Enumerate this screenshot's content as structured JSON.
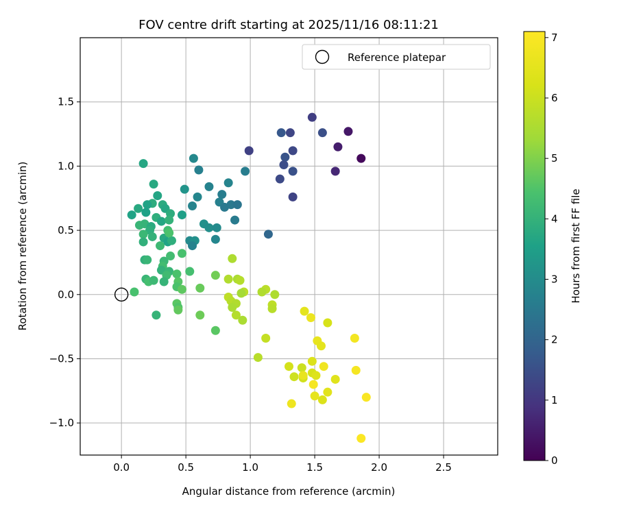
{
  "chart_data": {
    "type": "scatter",
    "title": "FOV centre drift starting at 2025/11/16 08:11:21",
    "xlabel": "Angular distance from reference (arcmin)",
    "ylabel": "Rotation from reference (arcmin)",
    "xlim": [
      -0.32,
      2.92
    ],
    "ylim": [
      -1.25,
      2.0
    ],
    "xticks": [
      0.0,
      0.5,
      1.0,
      1.5,
      2.0,
      2.5
    ],
    "xtick_labels": [
      "0.0",
      "0.5",
      "1.0",
      "1.5",
      "2.0",
      "2.5"
    ],
    "yticks": [
      -1.0,
      -0.5,
      0.0,
      0.5,
      1.0,
      1.5
    ],
    "ytick_labels": [
      "−1.0",
      "−0.5",
      "0.0",
      "0.5",
      "1.0",
      "1.5"
    ],
    "grid": true,
    "legend": {
      "placement": "top-right",
      "label": "Reference platepar"
    },
    "reference_point": {
      "x": 0.0,
      "y": 0.0
    },
    "colorbar": {
      "label": "Hours from first FF file",
      "colormap": "viridis",
      "min": 0,
      "max": 7.1,
      "ticks": [
        0,
        1,
        2,
        3,
        4,
        5,
        6,
        7
      ],
      "tick_labels": [
        "0",
        "1",
        "2",
        "3",
        "4",
        "5",
        "6",
        "7"
      ]
    },
    "points": [
      {
        "x": 1.48,
        "y": 1.38,
        "h": 1.15
      },
      {
        "x": 1.76,
        "y": 1.27,
        "h": 0.4
      },
      {
        "x": 1.86,
        "y": 1.06,
        "h": 0.15
      },
      {
        "x": 1.68,
        "y": 1.15,
        "h": 0.5
      },
      {
        "x": 1.66,
        "y": 0.96,
        "h": 0.7
      },
      {
        "x": 1.56,
        "y": 1.26,
        "h": 1.5
      },
      {
        "x": 1.24,
        "y": 1.26,
        "h": 1.7
      },
      {
        "x": 1.31,
        "y": 1.26,
        "h": 1.3
      },
      {
        "x": 0.99,
        "y": 1.12,
        "h": 1.2
      },
      {
        "x": 1.33,
        "y": 1.12,
        "h": 1.35
      },
      {
        "x": 1.27,
        "y": 1.07,
        "h": 1.6
      },
      {
        "x": 1.26,
        "y": 1.01,
        "h": 1.45
      },
      {
        "x": 1.33,
        "y": 0.96,
        "h": 1.55
      },
      {
        "x": 1.23,
        "y": 0.9,
        "h": 1.4
      },
      {
        "x": 1.33,
        "y": 0.76,
        "h": 1.25
      },
      {
        "x": 1.14,
        "y": 0.47,
        "h": 2.05
      },
      {
        "x": 0.96,
        "y": 0.96,
        "h": 2.6
      },
      {
        "x": 0.56,
        "y": 1.06,
        "h": 2.9
      },
      {
        "x": 0.6,
        "y": 0.97,
        "h": 2.7
      },
      {
        "x": 0.83,
        "y": 0.87,
        "h": 2.8
      },
      {
        "x": 0.68,
        "y": 0.84,
        "h": 2.75
      },
      {
        "x": 0.49,
        "y": 0.82,
        "h": 3.2
      },
      {
        "x": 0.78,
        "y": 0.78,
        "h": 2.6
      },
      {
        "x": 0.59,
        "y": 0.76,
        "h": 2.85
      },
      {
        "x": 0.76,
        "y": 0.72,
        "h": 2.7
      },
      {
        "x": 0.8,
        "y": 0.68,
        "h": 2.5
      },
      {
        "x": 0.85,
        "y": 0.7,
        "h": 2.5
      },
      {
        "x": 0.9,
        "y": 0.7,
        "h": 2.4
      },
      {
        "x": 0.55,
        "y": 0.69,
        "h": 2.8
      },
      {
        "x": 0.88,
        "y": 0.58,
        "h": 2.55
      },
      {
        "x": 0.64,
        "y": 0.55,
        "h": 3.1
      },
      {
        "x": 0.68,
        "y": 0.52,
        "h": 3.05
      },
      {
        "x": 0.74,
        "y": 0.52,
        "h": 2.95
      },
      {
        "x": 0.53,
        "y": 0.42,
        "h": 2.95
      },
      {
        "x": 0.57,
        "y": 0.42,
        "h": 3.1
      },
      {
        "x": 0.55,
        "y": 0.38,
        "h": 2.75
      },
      {
        "x": 0.73,
        "y": 0.43,
        "h": 2.85
      },
      {
        "x": 0.47,
        "y": 0.62,
        "h": 3.5
      },
      {
        "x": 0.17,
        "y": 1.02,
        "h": 3.7
      },
      {
        "x": 0.25,
        "y": 0.86,
        "h": 3.75
      },
      {
        "x": 0.28,
        "y": 0.77,
        "h": 3.65
      },
      {
        "x": 0.32,
        "y": 0.7,
        "h": 3.8
      },
      {
        "x": 0.34,
        "y": 0.67,
        "h": 3.7
      },
      {
        "x": 0.24,
        "y": 0.71,
        "h": 3.85
      },
      {
        "x": 0.2,
        "y": 0.7,
        "h": 3.6
      },
      {
        "x": 0.13,
        "y": 0.67,
        "h": 3.75
      },
      {
        "x": 0.08,
        "y": 0.62,
        "h": 3.6
      },
      {
        "x": 0.19,
        "y": 0.64,
        "h": 3.55
      },
      {
        "x": 0.27,
        "y": 0.6,
        "h": 3.9
      },
      {
        "x": 0.31,
        "y": 0.57,
        "h": 3.7
      },
      {
        "x": 0.38,
        "y": 0.63,
        "h": 3.85
      },
      {
        "x": 0.37,
        "y": 0.58,
        "h": 4.0
      },
      {
        "x": 0.14,
        "y": 0.54,
        "h": 4.1
      },
      {
        "x": 0.18,
        "y": 0.55,
        "h": 4.05
      },
      {
        "x": 0.23,
        "y": 0.53,
        "h": 3.8
      },
      {
        "x": 0.22,
        "y": 0.5,
        "h": 3.9
      },
      {
        "x": 0.17,
        "y": 0.47,
        "h": 4.15
      },
      {
        "x": 0.24,
        "y": 0.45,
        "h": 4.0
      },
      {
        "x": 0.33,
        "y": 0.44,
        "h": 3.75
      },
      {
        "x": 0.36,
        "y": 0.41,
        "h": 3.6
      },
      {
        "x": 0.39,
        "y": 0.42,
        "h": 3.9
      },
      {
        "x": 0.17,
        "y": 0.41,
        "h": 3.95
      },
      {
        "x": 0.36,
        "y": 0.5,
        "h": 4.3
      },
      {
        "x": 0.37,
        "y": 0.48,
        "h": 4.45
      },
      {
        "x": 0.3,
        "y": 0.38,
        "h": 4.2
      },
      {
        "x": 0.38,
        "y": 0.3,
        "h": 4.3
      },
      {
        "x": 0.47,
        "y": 0.32,
        "h": 4.4
      },
      {
        "x": 0.18,
        "y": 0.27,
        "h": 3.95
      },
      {
        "x": 0.2,
        "y": 0.27,
        "h": 4.1
      },
      {
        "x": 0.33,
        "y": 0.26,
        "h": 4.15
      },
      {
        "x": 0.32,
        "y": 0.22,
        "h": 4.3
      },
      {
        "x": 0.31,
        "y": 0.19,
        "h": 4.0
      },
      {
        "x": 0.37,
        "y": 0.18,
        "h": 4.1
      },
      {
        "x": 0.35,
        "y": 0.15,
        "h": 4.25
      },
      {
        "x": 0.53,
        "y": 0.18,
        "h": 4.35
      },
      {
        "x": 0.43,
        "y": 0.16,
        "h": 4.45
      },
      {
        "x": 0.19,
        "y": 0.12,
        "h": 4.1
      },
      {
        "x": 0.21,
        "y": 0.1,
        "h": 4.35
      },
      {
        "x": 0.25,
        "y": 0.11,
        "h": 4.2
      },
      {
        "x": 0.33,
        "y": 0.1,
        "h": 4.05
      },
      {
        "x": 0.44,
        "y": 0.1,
        "h": 4.55
      },
      {
        "x": 0.43,
        "y": 0.06,
        "h": 4.45
      },
      {
        "x": 0.47,
        "y": 0.04,
        "h": 4.65
      },
      {
        "x": 0.61,
        "y": 0.05,
        "h": 4.75
      },
      {
        "x": 0.1,
        "y": 0.02,
        "h": 4.4
      },
      {
        "x": 0.43,
        "y": -0.07,
        "h": 4.6
      },
      {
        "x": 0.44,
        "y": -0.1,
        "h": 4.5
      },
      {
        "x": 0.44,
        "y": -0.12,
        "h": 4.7
      },
      {
        "x": 0.27,
        "y": -0.16,
        "h": 4.05
      },
      {
        "x": 0.61,
        "y": -0.16,
        "h": 4.8
      },
      {
        "x": 0.73,
        "y": 0.15,
        "h": 4.85
      },
      {
        "x": 0.73,
        "y": -0.28,
        "h": 4.6
      },
      {
        "x": 0.86,
        "y": 0.28,
        "h": 5.55
      },
      {
        "x": 0.83,
        "y": 0.12,
        "h": 5.6
      },
      {
        "x": 0.9,
        "y": 0.12,
        "h": 5.5
      },
      {
        "x": 0.92,
        "y": 0.11,
        "h": 5.65
      },
      {
        "x": 0.95,
        "y": 0.02,
        "h": 5.75
      },
      {
        "x": 0.93,
        "y": 0.01,
        "h": 5.4
      },
      {
        "x": 0.83,
        "y": -0.02,
        "h": 5.8
      },
      {
        "x": 0.85,
        "y": -0.05,
        "h": 5.7
      },
      {
        "x": 0.89,
        "y": -0.07,
        "h": 5.6
      },
      {
        "x": 0.86,
        "y": -0.1,
        "h": 5.5
      },
      {
        "x": 0.89,
        "y": -0.16,
        "h": 5.65
      },
      {
        "x": 0.94,
        "y": -0.2,
        "h": 5.5
      },
      {
        "x": 1.12,
        "y": 0.04,
        "h": 5.75
      },
      {
        "x": 1.09,
        "y": 0.02,
        "h": 5.6
      },
      {
        "x": 1.19,
        "y": 0.0,
        "h": 5.55
      },
      {
        "x": 1.17,
        "y": -0.08,
        "h": 5.8
      },
      {
        "x": 1.17,
        "y": -0.11,
        "h": 5.7
      },
      {
        "x": 1.12,
        "y": -0.34,
        "h": 5.9
      },
      {
        "x": 1.06,
        "y": -0.49,
        "h": 5.7
      },
      {
        "x": 1.42,
        "y": -0.13,
        "h": 6.5
      },
      {
        "x": 1.47,
        "y": -0.18,
        "h": 6.7
      },
      {
        "x": 1.6,
        "y": -0.22,
        "h": 6.2
      },
      {
        "x": 1.52,
        "y": -0.36,
        "h": 6.6
      },
      {
        "x": 1.55,
        "y": -0.4,
        "h": 6.5
      },
      {
        "x": 1.48,
        "y": -0.52,
        "h": 6.3
      },
      {
        "x": 1.3,
        "y": -0.56,
        "h": 6.15
      },
      {
        "x": 1.57,
        "y": -0.56,
        "h": 6.8
      },
      {
        "x": 1.4,
        "y": -0.57,
        "h": 6.0
      },
      {
        "x": 1.48,
        "y": -0.61,
        "h": 6.2
      },
      {
        "x": 1.51,
        "y": -0.63,
        "h": 6.35
      },
      {
        "x": 1.34,
        "y": -0.64,
        "h": 6.05
      },
      {
        "x": 1.41,
        "y": -0.65,
        "h": 6.1
      },
      {
        "x": 1.41,
        "y": -0.63,
        "h": 6.6
      },
      {
        "x": 1.49,
        "y": -0.7,
        "h": 6.9
      },
      {
        "x": 1.66,
        "y": -0.66,
        "h": 6.4
      },
      {
        "x": 1.81,
        "y": -0.34,
        "h": 6.85
      },
      {
        "x": 1.82,
        "y": -0.59,
        "h": 6.9
      },
      {
        "x": 1.6,
        "y": -0.76,
        "h": 6.45
      },
      {
        "x": 1.5,
        "y": -0.79,
        "h": 6.55
      },
      {
        "x": 1.56,
        "y": -0.82,
        "h": 6.3
      },
      {
        "x": 1.32,
        "y": -0.85,
        "h": 6.75
      },
      {
        "x": 1.9,
        "y": -0.8,
        "h": 7.0
      },
      {
        "x": 1.86,
        "y": -1.12,
        "h": 7.05
      }
    ]
  }
}
